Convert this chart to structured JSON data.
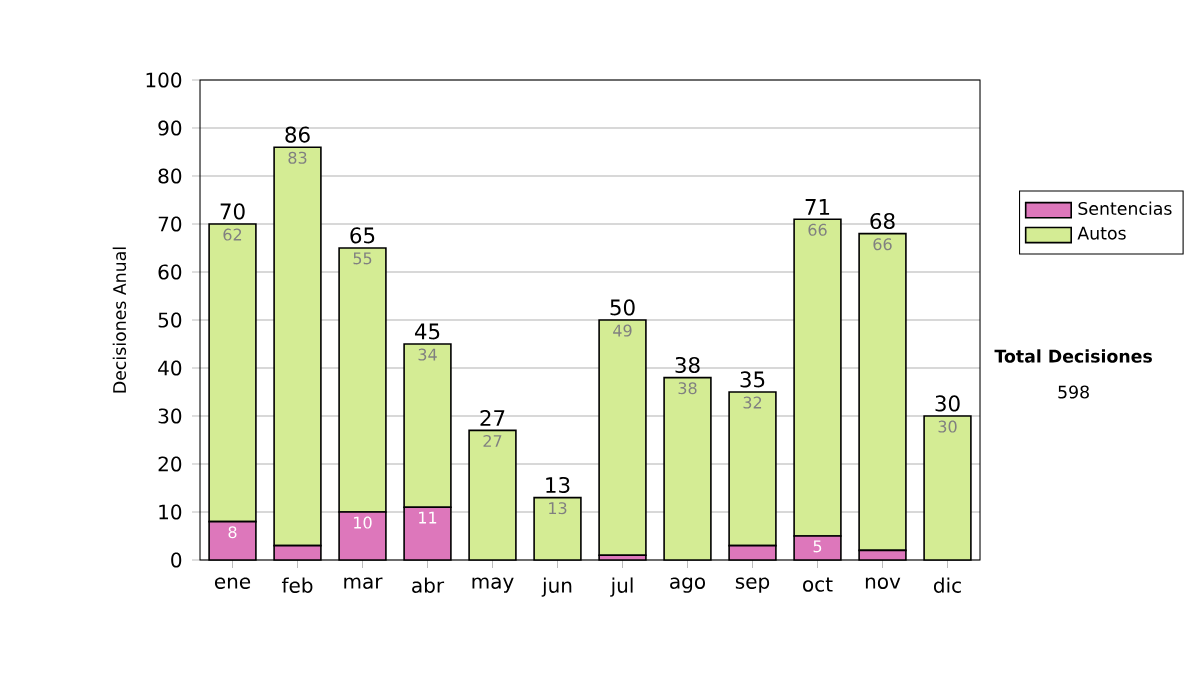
{
  "chart_data": {
    "type": "bar",
    "stacked": true,
    "ylabel": "Decisiones Anual",
    "categories": [
      "ene",
      "feb",
      "mar",
      "abr",
      "may",
      "jun",
      "jul",
      "ago",
      "sep",
      "oct",
      "nov",
      "dic"
    ],
    "series": [
      {
        "name": "Sentencias",
        "color": "#dd77bb",
        "values": [
          8,
          3,
          10,
          11,
          0,
          0,
          1,
          0,
          3,
          5,
          2,
          0
        ],
        "value_labels": [
          "8",
          null,
          "10",
          "11",
          null,
          null,
          null,
          null,
          null,
          "5",
          null,
          null
        ]
      },
      {
        "name": "Autos",
        "color": "#d4ec94",
        "values": [
          62,
          83,
          55,
          34,
          27,
          13,
          49,
          38,
          32,
          66,
          66,
          30
        ],
        "value_labels": [
          "62",
          "83",
          "55",
          "34",
          "27",
          "13",
          "49",
          "38",
          "32",
          "66",
          "66",
          "30"
        ]
      }
    ],
    "totals": [
      "70",
      "86",
      "65",
      "45",
      "27",
      "13",
      "50",
      "38",
      "35",
      "71",
      "68",
      "30"
    ],
    "ylim": [
      0,
      100
    ],
    "yticks": [
      0,
      10,
      20,
      30,
      40,
      50,
      60,
      70,
      80,
      90,
      100
    ],
    "grid": "y",
    "legend": "right",
    "annotations": [
      "Total Decisiones",
      "598"
    ]
  }
}
